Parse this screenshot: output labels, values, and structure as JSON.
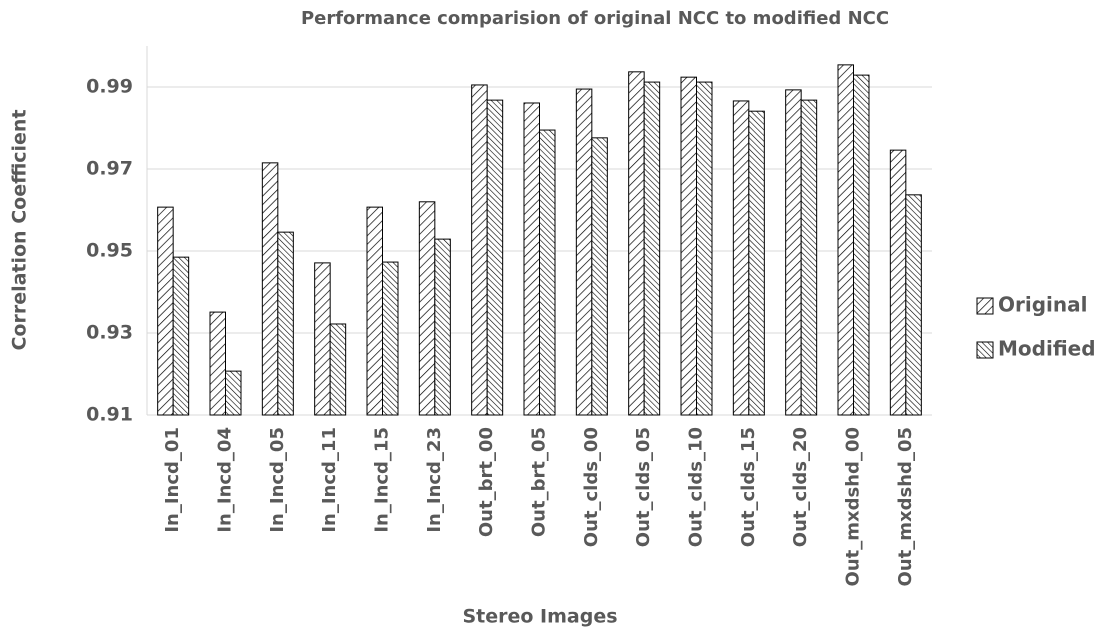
{
  "chart_data": {
    "type": "bar",
    "title": "Performance comparision  of original NCC to modified NCC",
    "x_label": "Stereo Images",
    "y_label": "Correlation  Coefficient",
    "categories": [
      "In_Incd_01",
      "In_Incd_04",
      "In_Incd_05",
      "In_Incd_11",
      "In_Incd_15",
      "In_Incd_23",
      "Out_brt_00",
      "Out_brt_05",
      "Out_clds_00",
      "Out_clds_05",
      "Out_clds_10",
      "Out_clds_15",
      "Out_clds_20",
      "Out_mxdshd_00",
      "Out_mxdshd_05"
    ],
    "series": [
      {
        "name": "Original",
        "color": "#000000",
        "values": [
          0.9607,
          0.9351,
          0.9715,
          0.9471,
          0.9607,
          0.962,
          0.9905,
          0.9861,
          0.9895,
          0.9937,
          0.9924,
          0.9866,
          0.9893,
          0.9954,
          0.9746
        ]
      },
      {
        "name": "Modified",
        "color": "#000000",
        "values": [
          0.9485,
          0.9207,
          0.9546,
          0.9322,
          0.9473,
          0.9529,
          0.9868,
          0.9795,
          0.9776,
          0.9912,
          0.9912,
          0.9841,
          0.9868,
          0.9929,
          0.9637
        ]
      }
    ],
    "ylim": [
      0.91,
      1.0
    ],
    "yticks": [
      0.91,
      0.93,
      0.95,
      0.97,
      0.99
    ],
    "grid": true,
    "legend": "right"
  }
}
